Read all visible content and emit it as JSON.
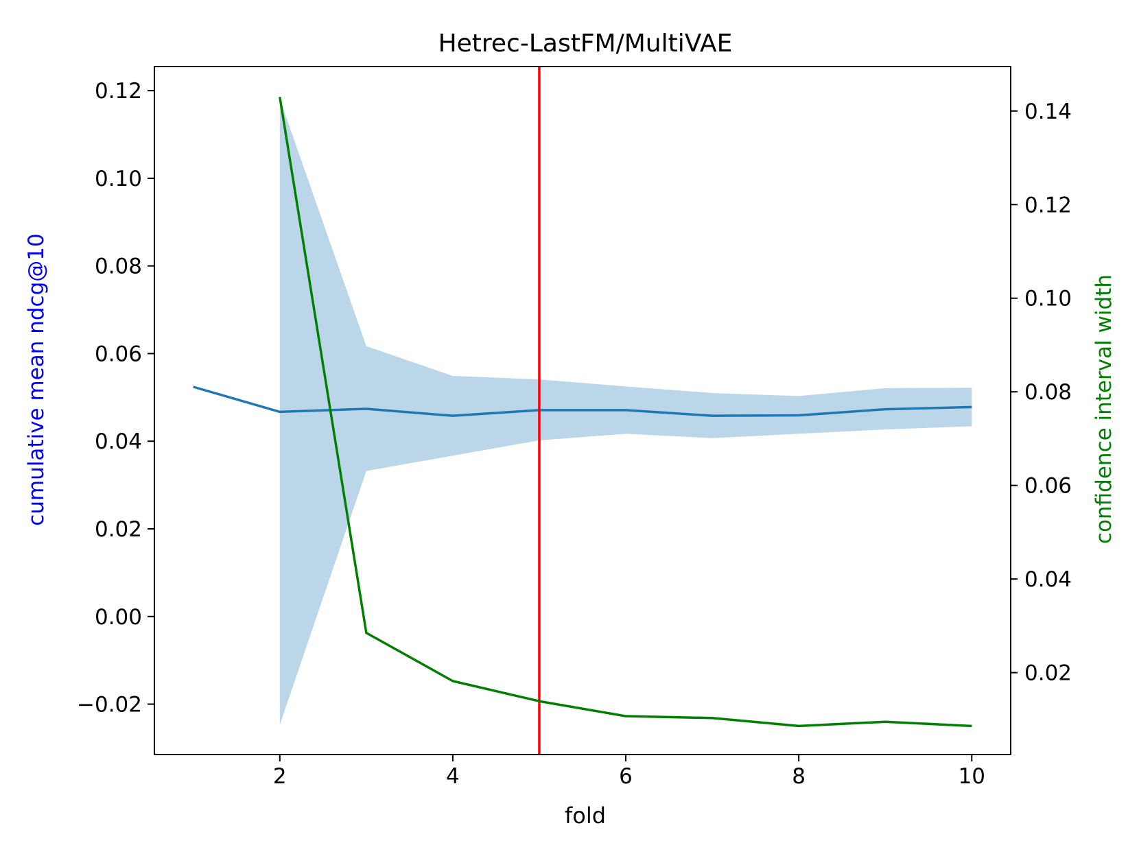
{
  "chart_data": {
    "type": "line",
    "title": "Hetrec-LastFM/MultiVAE",
    "xlabel": "fold",
    "ylabel_left": "cumulative mean ndcg@10",
    "ylabel_right": "confidence interval width",
    "xlim": [
      0.55,
      10.45
    ],
    "ylim_left": [
      -0.0315,
      0.1255
    ],
    "ylim_right": [
      0.0025,
      0.1495
    ],
    "x_ticks": [
      2,
      4,
      6,
      8,
      10
    ],
    "x_tick_labels": [
      "2",
      "4",
      "6",
      "8",
      "10"
    ],
    "y_left_ticks": [
      -0.02,
      0.0,
      0.02,
      0.04,
      0.06,
      0.08,
      0.1,
      0.12
    ],
    "y_left_tick_labels": [
      "−0.02",
      "0.00",
      "0.02",
      "0.04",
      "0.06",
      "0.08",
      "0.10",
      "0.12"
    ],
    "y_right_ticks": [
      0.02,
      0.04,
      0.06,
      0.08,
      0.1,
      0.12,
      0.14
    ],
    "y_right_tick_labels": [
      "0.02",
      "0.04",
      "0.06",
      "0.08",
      "0.10",
      "0.12",
      "0.14"
    ],
    "grid": false,
    "series": [
      {
        "axis": "left",
        "x": [
          1,
          2,
          3,
          4,
          5,
          6,
          7,
          8,
          9,
          10
        ],
        "y": [
          0.0524,
          0.0467,
          0.0474,
          0.0458,
          0.0471,
          0.0471,
          0.0458,
          0.0459,
          0.0473,
          0.0478
        ]
      },
      {
        "axis": "left",
        "kind": "band",
        "x": [
          2,
          3,
          4,
          5,
          6,
          7,
          8,
          9,
          10
        ],
        "lower": [
          -0.0247,
          0.0332,
          0.0367,
          0.0402,
          0.0417,
          0.0407,
          0.0417,
          0.0427,
          0.0434
        ],
        "upper": [
          0.1181,
          0.0617,
          0.0549,
          0.0541,
          0.0525,
          0.051,
          0.0503,
          0.0521,
          0.0522
        ]
      },
      {
        "axis": "right",
        "x": [
          2,
          3,
          4,
          5,
          6,
          7,
          8,
          9,
          10
        ],
        "y": [
          0.143,
          0.0285,
          0.0182,
          0.0139,
          0.0107,
          0.0103,
          0.0086,
          0.0095,
          0.0086
        ]
      }
    ],
    "vline_x": 5,
    "colors": {
      "mean_line": "#1f77b4",
      "band": "#1f77b4",
      "ci_width_line": "#008000",
      "vline": "#ff0000",
      "left_label": "#0000ff",
      "right_label": "#008000"
    }
  }
}
